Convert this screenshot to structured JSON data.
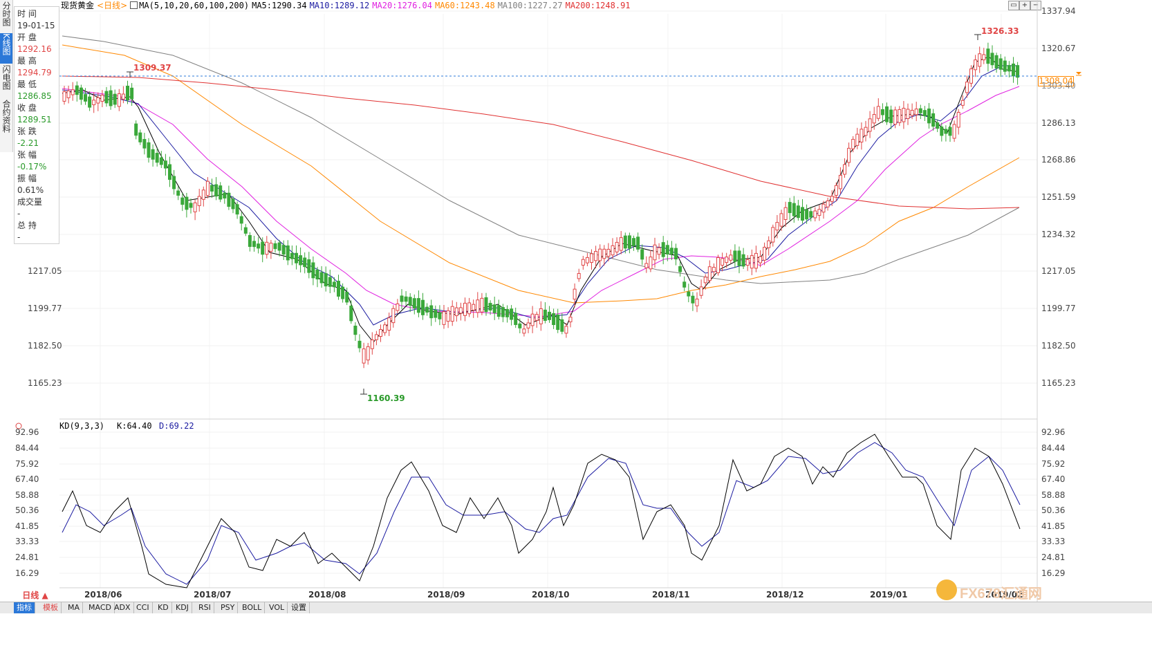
{
  "side_tabs": [
    "分时图",
    "K线图",
    "闪电图",
    "合约资料"
  ],
  "info": {
    "time_label": "时 间",
    "time": "19-01-15",
    "open_label": "开 盘",
    "open": "1292.16",
    "high_label": "最 高",
    "high": "1294.79",
    "low_label": "最 低",
    "low": "1286.85",
    "close_label": "收 盘",
    "close": "1289.51",
    "change_label": "张 跌",
    "change": "-2.21",
    "pct_label": "张 幅",
    "pct": "-0.17%",
    "amp_label": "振 幅",
    "amp": "0.61%",
    "vol_label": "成交量",
    "vol": "-",
    "oi_label": "总 持",
    "oi": "-"
  },
  "header": {
    "instrument": "现货黄金",
    "period": "<日线>",
    "ma_spec": "MA(5,10,20,60,100,200)",
    "ma5": "MA5:1290.34",
    "ma10": "MA10:1289.12",
    "ma20": "MA20:1276.04",
    "ma60": "MA60:1243.48",
    "ma100": "MA100:1227.27",
    "ma200": "MA200:1248.91"
  },
  "colors": {
    "up": "#e04545",
    "down": "#3aa83a",
    "ma5": "#000000",
    "ma10": "#1a1aa0",
    "ma20": "#e020e0",
    "ma60": "#ff8800",
    "ma100": "#808080",
    "ma200": "#e03030"
  },
  "price_axis": {
    "labels": [
      "1337.94",
      "1320.67",
      "1303.40",
      "1286.13",
      "1268.86",
      "1251.59",
      "1234.32",
      "1217.05",
      "1199.77",
      "1182.50",
      "1165.23"
    ],
    "current": "1308.04"
  },
  "annotations": {
    "high1": "1309.37",
    "high2": "1326.33",
    "low1": "1160.39"
  },
  "kd": {
    "title": "KD(9,3,3)",
    "k": "K:64.40",
    "d": "D:69.22",
    "labels": [
      "92.96",
      "84.44",
      "75.92",
      "67.40",
      "58.88",
      "50.36",
      "41.85",
      "33.33",
      "24.81",
      "16.29"
    ]
  },
  "x_labels": [
    "2018/06",
    "2018/07",
    "2018/08",
    "2018/09",
    "2018/10",
    "2018/11",
    "2018/12",
    "2019/01",
    "2019/02"
  ],
  "period_button": "日线 ▲",
  "bottom_tabs": [
    "指标",
    "模板",
    "MA",
    "MACD",
    "ADX",
    "CCI",
    "KD",
    "KDJ",
    "RSI",
    "PSY",
    "BOLL",
    "VOL",
    "设置"
  ],
  "watermark": "FX678汇通网"
}
